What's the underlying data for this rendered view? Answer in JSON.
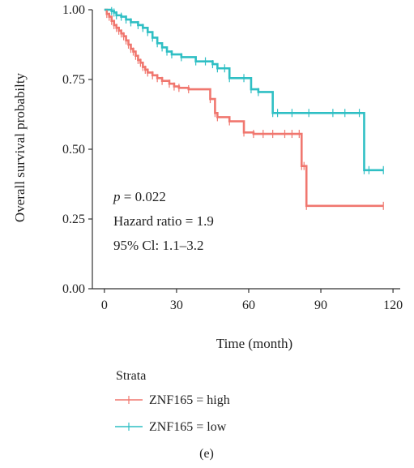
{
  "chart_data": {
    "type": "line",
    "subtype": "kaplan-meier step curve",
    "xlabel": "Time (month)",
    "ylabel": "Overall survival probabilty",
    "xlim": [
      -5,
      123
    ],
    "ylim": [
      0,
      1
    ],
    "xticks": [
      "0",
      "30",
      "60",
      "90",
      "120"
    ],
    "xtick_values": [
      0,
      30,
      60,
      90,
      120
    ],
    "yticks": [
      "0.00",
      "0.25",
      "0.50",
      "0.75",
      "1.00"
    ],
    "ytick_values": [
      0,
      0.25,
      0.5,
      0.75,
      1.0
    ],
    "grid": false,
    "legend": {
      "title": "Strata",
      "placement": "bottom-left"
    },
    "annotations": {
      "p_italic": "p",
      "p_rest": " = 0.022",
      "hazard": "Hazard ratio = 1.9",
      "ci": "95% Cl: 1.1–3.2"
    },
    "panel_label": "(e)",
    "series": [
      {
        "name": "ZNF165 = high",
        "color": "#F0776F",
        "x": [
          0,
          1,
          2,
          3,
          4,
          5,
          6,
          7,
          8,
          9,
          10,
          11,
          12,
          13,
          14,
          15,
          16,
          17,
          18,
          20,
          22,
          24,
          27,
          29,
          31,
          35,
          44,
          46,
          47,
          52,
          58,
          62,
          66,
          70,
          75,
          78,
          81,
          82,
          83,
          84,
          116
        ],
        "y": [
          1.0,
          0.985,
          0.975,
          0.96,
          0.945,
          0.935,
          0.925,
          0.915,
          0.905,
          0.89,
          0.875,
          0.86,
          0.85,
          0.835,
          0.82,
          0.81,
          0.795,
          0.785,
          0.775,
          0.765,
          0.755,
          0.745,
          0.735,
          0.725,
          0.72,
          0.715,
          0.68,
          0.63,
          0.615,
          0.6,
          0.56,
          0.555,
          0.555,
          0.555,
          0.555,
          0.555,
          0.555,
          0.44,
          0.44,
          0.297,
          0.297
        ]
      },
      {
        "name": "ZNF165 = low",
        "color": "#2FBFC4",
        "x": [
          0,
          3,
          4,
          5,
          7,
          9,
          11,
          14,
          16,
          18,
          20,
          22,
          24,
          26,
          28,
          32,
          38,
          42,
          45,
          47,
          50,
          52,
          58,
          61,
          64,
          70,
          72,
          78,
          85,
          95,
          100,
          106,
          108,
          110,
          116
        ],
        "y": [
          1.0,
          0.995,
          0.99,
          0.98,
          0.975,
          0.965,
          0.955,
          0.945,
          0.935,
          0.92,
          0.9,
          0.88,
          0.865,
          0.85,
          0.84,
          0.83,
          0.815,
          0.815,
          0.805,
          0.79,
          0.79,
          0.755,
          0.755,
          0.715,
          0.705,
          0.63,
          0.63,
          0.63,
          0.63,
          0.63,
          0.63,
          0.63,
          0.425,
          0.425,
          0.425
        ]
      }
    ]
  }
}
